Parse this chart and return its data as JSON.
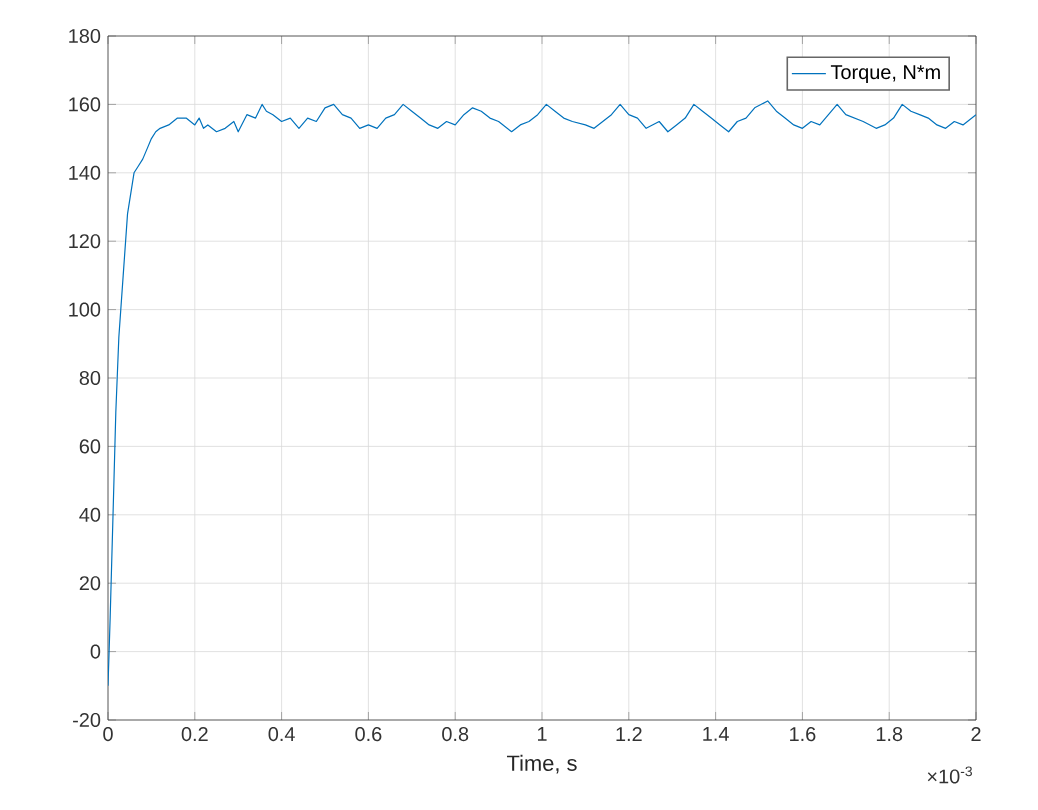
{
  "chart_data": {
    "type": "line",
    "xlabel": "Time, s",
    "annotations": [
      "×10$^{-3}$"
    ],
    "xlim": [
      0,
      2
    ],
    "ylim": [
      -20,
      180
    ],
    "xticks": [
      0,
      0.2,
      0.4,
      0.6,
      0.8,
      1,
      1.2,
      1.4,
      1.6,
      1.8,
      2
    ],
    "yticks": [
      -20,
      0,
      20,
      40,
      60,
      80,
      100,
      120,
      140,
      160,
      180
    ],
    "grid": true,
    "legend": "top right",
    "line_style": "solid",
    "series": [
      {
        "name": "Torque, N*m",
        "color": "#0072bd",
        "x": [
          0,
          0.005,
          0.012,
          0.018,
          0.025,
          0.035,
          0.045,
          0.06,
          0.07,
          0.08,
          0.09,
          0.1,
          0.11,
          0.12,
          0.14,
          0.16,
          0.18,
          0.2,
          0.21,
          0.22,
          0.23,
          0.25,
          0.27,
          0.29,
          0.3,
          0.32,
          0.34,
          0.355,
          0.365,
          0.38,
          0.4,
          0.42,
          0.44,
          0.46,
          0.48,
          0.5,
          0.52,
          0.54,
          0.56,
          0.58,
          0.6,
          0.62,
          0.64,
          0.66,
          0.68,
          0.7,
          0.72,
          0.74,
          0.76,
          0.78,
          0.8,
          0.82,
          0.84,
          0.86,
          0.88,
          0.9,
          0.93,
          0.95,
          0.97,
          0.99,
          1.01,
          1.03,
          1.05,
          1.07,
          1.1,
          1.12,
          1.14,
          1.16,
          1.18,
          1.2,
          1.22,
          1.24,
          1.27,
          1.29,
          1.31,
          1.33,
          1.35,
          1.37,
          1.39,
          1.41,
          1.43,
          1.45,
          1.47,
          1.49,
          1.52,
          1.54,
          1.56,
          1.58,
          1.6,
          1.62,
          1.64,
          1.66,
          1.68,
          1.7,
          1.72,
          1.74,
          1.77,
          1.79,
          1.81,
          1.83,
          1.85,
          1.87,
          1.89,
          1.91,
          1.93,
          1.95,
          1.97,
          2
        ],
        "values": [
          -10,
          10,
          42,
          70,
          92,
          110,
          128,
          140,
          142,
          144,
          147,
          150,
          152,
          153,
          154,
          156,
          156,
          154,
          156,
          153,
          154,
          152,
          153,
          155,
          152,
          157,
          156,
          160,
          158,
          157,
          155,
          156,
          153,
          156,
          155,
          159,
          160,
          157,
          156,
          153,
          154,
          153,
          156,
          157,
          160,
          158,
          156,
          154,
          153,
          155,
          154,
          157,
          159,
          158,
          156,
          155,
          152,
          154,
          155,
          157,
          160,
          158,
          156,
          155,
          154,
          153,
          155,
          157,
          160,
          157,
          156,
          153,
          155,
          152,
          154,
          156,
          160,
          158,
          156,
          154,
          152,
          155,
          156,
          159,
          161,
          158,
          156,
          154,
          153,
          155,
          154,
          157,
          160,
          157,
          156,
          155,
          153,
          154,
          156,
          160,
          158,
          157,
          156,
          154,
          153,
          155,
          154,
          157
        ]
      }
    ]
  }
}
